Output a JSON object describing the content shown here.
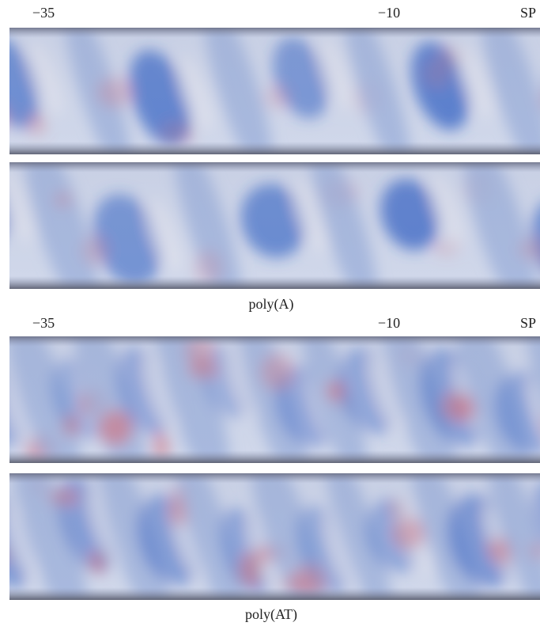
{
  "panels": [
    {
      "labels": [
        "−35",
        "−10",
        "SP"
      ],
      "caption": "poly(A)"
    },
    {
      "labels": [
        "−35",
        "−10",
        "SP"
      ],
      "caption": "poly(AT)"
    }
  ]
}
